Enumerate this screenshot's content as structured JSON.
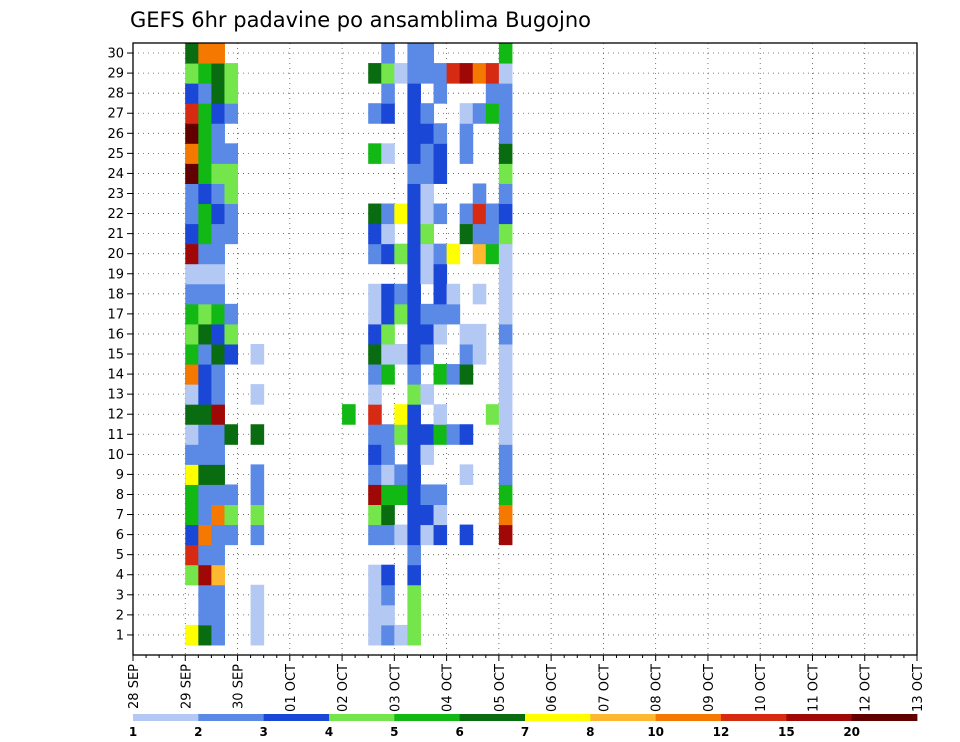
{
  "chart_data": {
    "type": "heatmap",
    "title": "GEFS 6hr padavine po ansamblima Bugojno",
    "xlabel": "",
    "ylabel": "",
    "x_tick_labels": [
      "28 SEP",
      "29 SEP",
      "30 SEP",
      "01 OCT",
      "02 OCT",
      "03 OCT",
      "04 OCT",
      "05 OCT",
      "06 OCT",
      "07 OCT",
      "08 OCT",
      "09 OCT",
      "10 OCT",
      "11 OCT",
      "12 OCT",
      "13 OCT"
    ],
    "y_tick_labels": [
      "1",
      "2",
      "3",
      "4",
      "5",
      "6",
      "7",
      "8",
      "9",
      "10",
      "11",
      "12",
      "13",
      "14",
      "15",
      "16",
      "17",
      "18",
      "19",
      "20",
      "21",
      "22",
      "23",
      "24",
      "25",
      "26",
      "27",
      "28",
      "29",
      "30"
    ],
    "x_start_day": "28 SEP",
    "step_hours": 6,
    "grid": "dotted",
    "colorbar": {
      "position": "bottom",
      "labels": [
        "1",
        "2",
        "3",
        "4",
        "5",
        "6",
        "7",
        "8",
        "10",
        "12",
        "15",
        "20"
      ],
      "colors": [
        "#b4c8f4",
        "#5b8ae6",
        "#1a47d6",
        "#74e64c",
        "#12b814",
        "#0a6c10",
        "#ffff00",
        "#fdb830",
        "#f57800",
        "#d72a12",
        "#a00808",
        "#620000"
      ]
    },
    "cells": [
      [
        4,
        1,
        0
      ],
      [
        5,
        1,
        0
      ],
      [
        7,
        1,
        4
      ],
      [
        8,
        1,
        9
      ],
      [
        9,
        1,
        2
      ],
      [
        10,
        1,
        4
      ],
      [
        12,
        1,
        7
      ],
      [
        13,
        1,
        8
      ],
      [
        14,
        1,
        9
      ],
      [
        15,
        1,
        0
      ],
      [
        16,
        1,
        2
      ],
      [
        21,
        1,
        4
      ],
      [
        22,
        1,
        1
      ],
      [
        23,
        1,
        1
      ],
      [
        24,
        1,
        4
      ],
      [
        25,
        1,
        4
      ],
      [
        26,
        1,
        4
      ],
      [
        27,
        1,
        0
      ],
      [
        28,
        1,
        5
      ],
      [
        29,
        1,
        0
      ],
      [
        30,
        1,
        0
      ],
      [
        1,
        1,
        6
      ],
      [
        4,
        1,
        3
      ],
      [
        5,
        1,
        9
      ],
      [
        6,
        1,
        2
      ],
      [
        7,
        1,
        4
      ],
      [
        8,
        1,
        4
      ],
      [
        9,
        1,
        6
      ],
      [
        10,
        1,
        1
      ],
      [
        11,
        1,
        0
      ],
      [
        12,
        1,
        5
      ],
      [
        13,
        1,
        0
      ],
      [
        14,
        1,
        8
      ],
      [
        15,
        1,
        4
      ],
      [
        16,
        1,
        3
      ],
      [
        17,
        1,
        4
      ],
      [
        18,
        1,
        1
      ],
      [
        19,
        1,
        0
      ],
      [
        20,
        1,
        10
      ],
      [
        21,
        1,
        2
      ],
      [
        22,
        1,
        1
      ],
      [
        24,
        1,
        11
      ],
      [
        25,
        1,
        8
      ],
      [
        26,
        1,
        11
      ],
      [
        27,
        1,
        9
      ],
      [
        28,
        1,
        2
      ],
      [
        29,
        1,
        3
      ],
      [
        30,
        1,
        5
      ],
      [
        1,
        2,
        5
      ],
      [
        2,
        2,
        1
      ],
      [
        3,
        2,
        1
      ],
      [
        4,
        2,
        10
      ],
      [
        5,
        2,
        1
      ],
      [
        6,
        2,
        8
      ],
      [
        7,
        2,
        1
      ],
      [
        8,
        2,
        1
      ],
      [
        9,
        2,
        5
      ],
      [
        10,
        2,
        1
      ],
      [
        11,
        2,
        1
      ],
      [
        12,
        2,
        5
      ],
      [
        13,
        2,
        2
      ],
      [
        14,
        2,
        2
      ],
      [
        15,
        2,
        1
      ],
      [
        16,
        2,
        5
      ],
      [
        17,
        2,
        3
      ],
      [
        18,
        2,
        1
      ],
      [
        19,
        2,
        0
      ],
      [
        20,
        2,
        1
      ],
      [
        21,
        2,
        4
      ],
      [
        22,
        2,
        4
      ],
      [
        23,
        2,
        2
      ],
      [
        24,
        2,
        4
      ],
      [
        25,
        2,
        4
      ],
      [
        26,
        2,
        4
      ],
      [
        27,
        2,
        4
      ],
      [
        28,
        2,
        1
      ],
      [
        29,
        2,
        4
      ],
      [
        30,
        2,
        8
      ],
      [
        1,
        3,
        1
      ],
      [
        2,
        3,
        1
      ],
      [
        3,
        3,
        1
      ],
      [
        4,
        3,
        7
      ],
      [
        5,
        3,
        1
      ],
      [
        6,
        3,
        1
      ],
      [
        7,
        3,
        8
      ],
      [
        8,
        3,
        1
      ],
      [
        9,
        3,
        5
      ],
      [
        10,
        3,
        1
      ],
      [
        11,
        3,
        1
      ],
      [
        12,
        3,
        10
      ],
      [
        13,
        3,
        1
      ],
      [
        14,
        3,
        1
      ],
      [
        15,
        3,
        5
      ],
      [
        16,
        3,
        2
      ],
      [
        17,
        3,
        4
      ],
      [
        18,
        3,
        1
      ],
      [
        19,
        3,
        0
      ],
      [
        20,
        3,
        1
      ],
      [
        21,
        3,
        1
      ],
      [
        22,
        3,
        2
      ],
      [
        23,
        3,
        1
      ],
      [
        24,
        3,
        3
      ],
      [
        25,
        3,
        1
      ],
      [
        26,
        3,
        1
      ],
      [
        27,
        3,
        2
      ],
      [
        28,
        3,
        5
      ],
      [
        29,
        3,
        5
      ],
      [
        30,
        3,
        8
      ],
      [
        6,
        4,
        1
      ],
      [
        7,
        4,
        3
      ],
      [
        8,
        4,
        1
      ],
      [
        11,
        4,
        5
      ],
      [
        15,
        4,
        2
      ],
      [
        16,
        4,
        3
      ],
      [
        17,
        4,
        1
      ],
      [
        21,
        4,
        1
      ],
      [
        22,
        4,
        1
      ],
      [
        23,
        4,
        3
      ],
      [
        24,
        4,
        3
      ],
      [
        25,
        4,
        1
      ],
      [
        27,
        4,
        1
      ],
      [
        28,
        4,
        3
      ],
      [
        29,
        4,
        3
      ],
      [
        1,
        6,
        0
      ],
      [
        2,
        6,
        0
      ],
      [
        3,
        6,
        0
      ],
      [
        6,
        6,
        1
      ],
      [
        7,
        6,
        3
      ],
      [
        8,
        6,
        1
      ],
      [
        9,
        6,
        1
      ],
      [
        11,
        6,
        5
      ],
      [
        13,
        6,
        0
      ],
      [
        15,
        6,
        0
      ],
      [
        12,
        13,
        4
      ],
      [
        1,
        15,
        0
      ],
      [
        2,
        15,
        0
      ],
      [
        3,
        15,
        0
      ],
      [
        4,
        15,
        0
      ],
      [
        6,
        15,
        1
      ],
      [
        7,
        15,
        3
      ],
      [
        8,
        15,
        10
      ],
      [
        9,
        15,
        1
      ],
      [
        10,
        15,
        2
      ],
      [
        11,
        15,
        1
      ],
      [
        12,
        15,
        9
      ],
      [
        13,
        15,
        0
      ],
      [
        14,
        15,
        1
      ],
      [
        15,
        15,
        5
      ],
      [
        16,
        15,
        2
      ],
      [
        17,
        15,
        0
      ],
      [
        18,
        15,
        0
      ],
      [
        20,
        15,
        1
      ],
      [
        21,
        15,
        2
      ],
      [
        22,
        15,
        5
      ],
      [
        25,
        15,
        4
      ],
      [
        27,
        15,
        1
      ],
      [
        29,
        15,
        5
      ],
      [
        1,
        16,
        1
      ],
      [
        2,
        16,
        0
      ],
      [
        3,
        16,
        1
      ],
      [
        4,
        16,
        2
      ],
      [
        6,
        16,
        1
      ],
      [
        7,
        16,
        5
      ],
      [
        8,
        16,
        4
      ],
      [
        9,
        16,
        0
      ],
      [
        10,
        16,
        1
      ],
      [
        11,
        16,
        1
      ],
      [
        14,
        16,
        4
      ],
      [
        15,
        16,
        0
      ],
      [
        16,
        16,
        3
      ],
      [
        17,
        16,
        2
      ],
      [
        18,
        16,
        2
      ],
      [
        20,
        16,
        2
      ],
      [
        21,
        16,
        0
      ],
      [
        22,
        16,
        1
      ],
      [
        25,
        16,
        0
      ],
      [
        27,
        16,
        2
      ],
      [
        28,
        16,
        1
      ],
      [
        29,
        16,
        3
      ],
      [
        30,
        16,
        1
      ],
      [
        1,
        17,
        0
      ],
      [
        6,
        17,
        0
      ],
      [
        8,
        17,
        4
      ],
      [
        9,
        17,
        1
      ],
      [
        11,
        17,
        3
      ],
      [
        12,
        17,
        6
      ],
      [
        15,
        17,
        0
      ],
      [
        17,
        17,
        3
      ],
      [
        18,
        17,
        1
      ],
      [
        20,
        17,
        3
      ],
      [
        22,
        17,
        6
      ],
      [
        29,
        17,
        0
      ],
      [
        1,
        18,
        3
      ],
      [
        2,
        18,
        3
      ],
      [
        3,
        18,
        3
      ],
      [
        4,
        18,
        2
      ],
      [
        5,
        18,
        1
      ],
      [
        6,
        18,
        2
      ],
      [
        7,
        18,
        2
      ],
      [
        8,
        18,
        2
      ],
      [
        9,
        18,
        2
      ],
      [
        10,
        18,
        2
      ],
      [
        11,
        18,
        2
      ],
      [
        12,
        18,
        2
      ],
      [
        13,
        18,
        3
      ],
      [
        14,
        18,
        1
      ],
      [
        15,
        18,
        2
      ],
      [
        16,
        18,
        2
      ],
      [
        17,
        18,
        2
      ],
      [
        18,
        18,
        2
      ],
      [
        19,
        18,
        2
      ],
      [
        20,
        18,
        2
      ],
      [
        21,
        18,
        2
      ],
      [
        22,
        18,
        2
      ],
      [
        23,
        18,
        2
      ],
      [
        24,
        18,
        1
      ],
      [
        25,
        18,
        2
      ],
      [
        26,
        18,
        2
      ],
      [
        27,
        18,
        2
      ],
      [
        28,
        18,
        2
      ],
      [
        29,
        18,
        1
      ],
      [
        30,
        18,
        1
      ],
      [
        6,
        19,
        0
      ],
      [
        7,
        19,
        2
      ],
      [
        8,
        19,
        1
      ],
      [
        10,
        19,
        0
      ],
      [
        11,
        19,
        2
      ],
      [
        13,
        19,
        0
      ],
      [
        15,
        19,
        1
      ],
      [
        16,
        19,
        2
      ],
      [
        17,
        19,
        1
      ],
      [
        19,
        19,
        0
      ],
      [
        20,
        19,
        0
      ],
      [
        21,
        19,
        3
      ],
      [
        22,
        19,
        0
      ],
      [
        23,
        19,
        0
      ],
      [
        24,
        19,
        1
      ],
      [
        25,
        19,
        1
      ],
      [
        26,
        19,
        2
      ],
      [
        27,
        19,
        1
      ],
      [
        29,
        19,
        1
      ],
      [
        30,
        19,
        1
      ],
      [
        6,
        20,
        2
      ],
      [
        7,
        20,
        0
      ],
      [
        8,
        20,
        1
      ],
      [
        11,
        20,
        4
      ],
      [
        12,
        20,
        0
      ],
      [
        14,
        20,
        4
      ],
      [
        16,
        20,
        0
      ],
      [
        17,
        20,
        1
      ],
      [
        18,
        20,
        2
      ],
      [
        19,
        20,
        2
      ],
      [
        20,
        20,
        1
      ],
      [
        22,
        20,
        1
      ],
      [
        24,
        20,
        2
      ],
      [
        25,
        20,
        2
      ],
      [
        26,
        20,
        1
      ],
      [
        28,
        20,
        1
      ],
      [
        29,
        20,
        1
      ],
      [
        11,
        21,
        1
      ],
      [
        14,
        21,
        1
      ],
      [
        17,
        21,
        1
      ],
      [
        18,
        21,
        0
      ],
      [
        20,
        21,
        6
      ],
      [
        29,
        21,
        9
      ],
      [
        6,
        22,
        2
      ],
      [
        9,
        22,
        0
      ],
      [
        11,
        22,
        2
      ],
      [
        14,
        22,
        5
      ],
      [
        15,
        22,
        1
      ],
      [
        16,
        22,
        0
      ],
      [
        21,
        22,
        5
      ],
      [
        22,
        22,
        1
      ],
      [
        25,
        22,
        1
      ],
      [
        26,
        22,
        1
      ],
      [
        27,
        22,
        0
      ],
      [
        29,
        22,
        10
      ],
      [
        15,
        23,
        0
      ],
      [
        16,
        23,
        0
      ],
      [
        18,
        23,
        0
      ],
      [
        20,
        23,
        7
      ],
      [
        21,
        23,
        1
      ],
      [
        22,
        23,
        9
      ],
      [
        23,
        23,
        1
      ],
      [
        27,
        23,
        1
      ],
      [
        29,
        23,
        8
      ],
      [
        12,
        24,
        3
      ],
      [
        20,
        24,
        4
      ],
      [
        21,
        24,
        1
      ],
      [
        22,
        24,
        1
      ],
      [
        27,
        24,
        4
      ],
      [
        28,
        24,
        1
      ],
      [
        29,
        24,
        9
      ],
      [
        6,
        25,
        10
      ],
      [
        7,
        25,
        8
      ],
      [
        8,
        25,
        4
      ],
      [
        9,
        25,
        1
      ],
      [
        10,
        25,
        1
      ],
      [
        11,
        25,
        0
      ],
      [
        12,
        25,
        0
      ],
      [
        13,
        25,
        0
      ],
      [
        14,
        25,
        0
      ],
      [
        15,
        25,
        0
      ],
      [
        16,
        25,
        1
      ],
      [
        17,
        25,
        0
      ],
      [
        18,
        25,
        0
      ],
      [
        19,
        25,
        0
      ],
      [
        20,
        25,
        0
      ],
      [
        21,
        25,
        3
      ],
      [
        22,
        25,
        2
      ],
      [
        23,
        25,
        1
      ],
      [
        24,
        25,
        3
      ],
      [
        25,
        25,
        5
      ],
      [
        26,
        25,
        1
      ],
      [
        27,
        25,
        1
      ],
      [
        28,
        25,
        1
      ],
      [
        29,
        25,
        0
      ],
      [
        30,
        25,
        4
      ]
    ]
  }
}
